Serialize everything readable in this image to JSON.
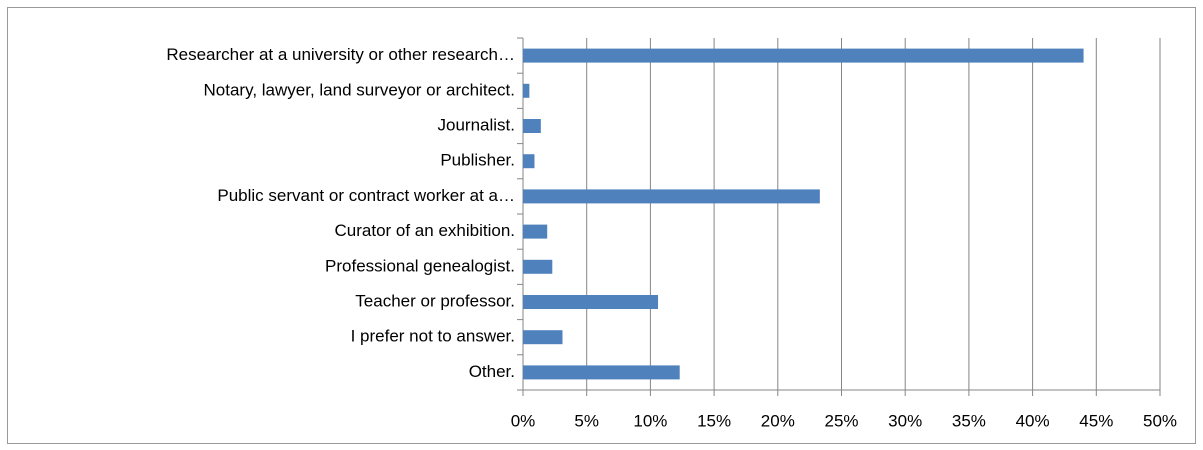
{
  "chart_data": {
    "type": "bar",
    "orientation": "horizontal",
    "categories": [
      "Researcher at a university or other research…",
      "Notary, lawyer, land surveyor or architect.",
      "Journalist.",
      "Publisher.",
      "Public servant or contract worker at a…",
      "Curator of an exhibition.",
      "Professional genealogist.",
      "Teacher or professor.",
      "I prefer not to answer.",
      "Other."
    ],
    "values": [
      44.0,
      0.5,
      1.4,
      0.9,
      23.3,
      1.9,
      2.3,
      10.6,
      3.1,
      12.3
    ],
    "color": "#4f81bd",
    "xlim": [
      0,
      50
    ],
    "xticks": [
      {
        "value": 0,
        "label": "0%"
      },
      {
        "value": 5,
        "label": "5%"
      },
      {
        "value": 10,
        "label": "10%"
      },
      {
        "value": 15,
        "label": "15%"
      },
      {
        "value": 20,
        "label": "20%"
      },
      {
        "value": 25,
        "label": "25%"
      },
      {
        "value": 30,
        "label": "30%"
      },
      {
        "value": 35,
        "label": "35%"
      },
      {
        "value": 40,
        "label": "40%"
      },
      {
        "value": 45,
        "label": "45%"
      },
      {
        "value": 50,
        "label": "50%"
      }
    ],
    "grid": true
  }
}
